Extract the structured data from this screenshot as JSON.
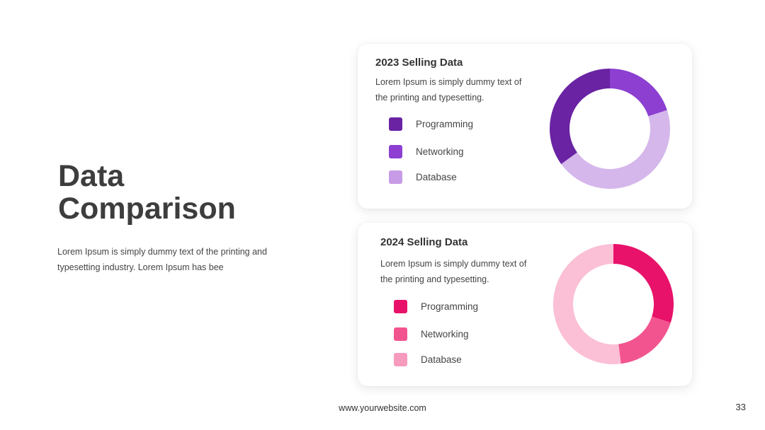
{
  "slide": {
    "title_line1": "Data",
    "title_line2": "Comparison",
    "description": "Lorem Ipsum is simply dummy text of the printing and typesetting industry. Lorem Ipsum has bee",
    "website": "www.yourwebsite.com",
    "page_number": "33"
  },
  "cards": [
    {
      "title": "2023 Selling Data",
      "text": "Lorem Ipsum is simply dummy text of the printing and typesetting."
    },
    {
      "title": "2024 Selling Data",
      "text": "Lorem Ipsum is simply dummy text of the printing and typesetting."
    }
  ],
  "chart_data": [
    {
      "type": "pie",
      "title": "2023 Selling Data",
      "donut": true,
      "categories": [
        "Programming",
        "Networking",
        "Database"
      ],
      "values": [
        35,
        20,
        45
      ],
      "slice_order_clockwise_from_top": [
        "Networking",
        "Database",
        "Programming"
      ],
      "colors": [
        "#6a23a3",
        "#8c3fd1",
        "#d5b7ec"
      ],
      "legend_colors": [
        "#6a23a3",
        "#8c3fd1",
        "#c89be6"
      ]
    },
    {
      "type": "pie",
      "title": "2024 Selling Data",
      "donut": true,
      "categories": [
        "Programming",
        "Networking",
        "Database"
      ],
      "values": [
        30,
        18,
        52
      ],
      "slice_order_clockwise_from_top": [
        "Programming",
        "Networking",
        "Database"
      ],
      "colors": [
        "#e8126a",
        "#f25490",
        "#fbbfd6"
      ],
      "legend_colors": [
        "#e8126a",
        "#f25490",
        "#f79bbe"
      ]
    }
  ]
}
